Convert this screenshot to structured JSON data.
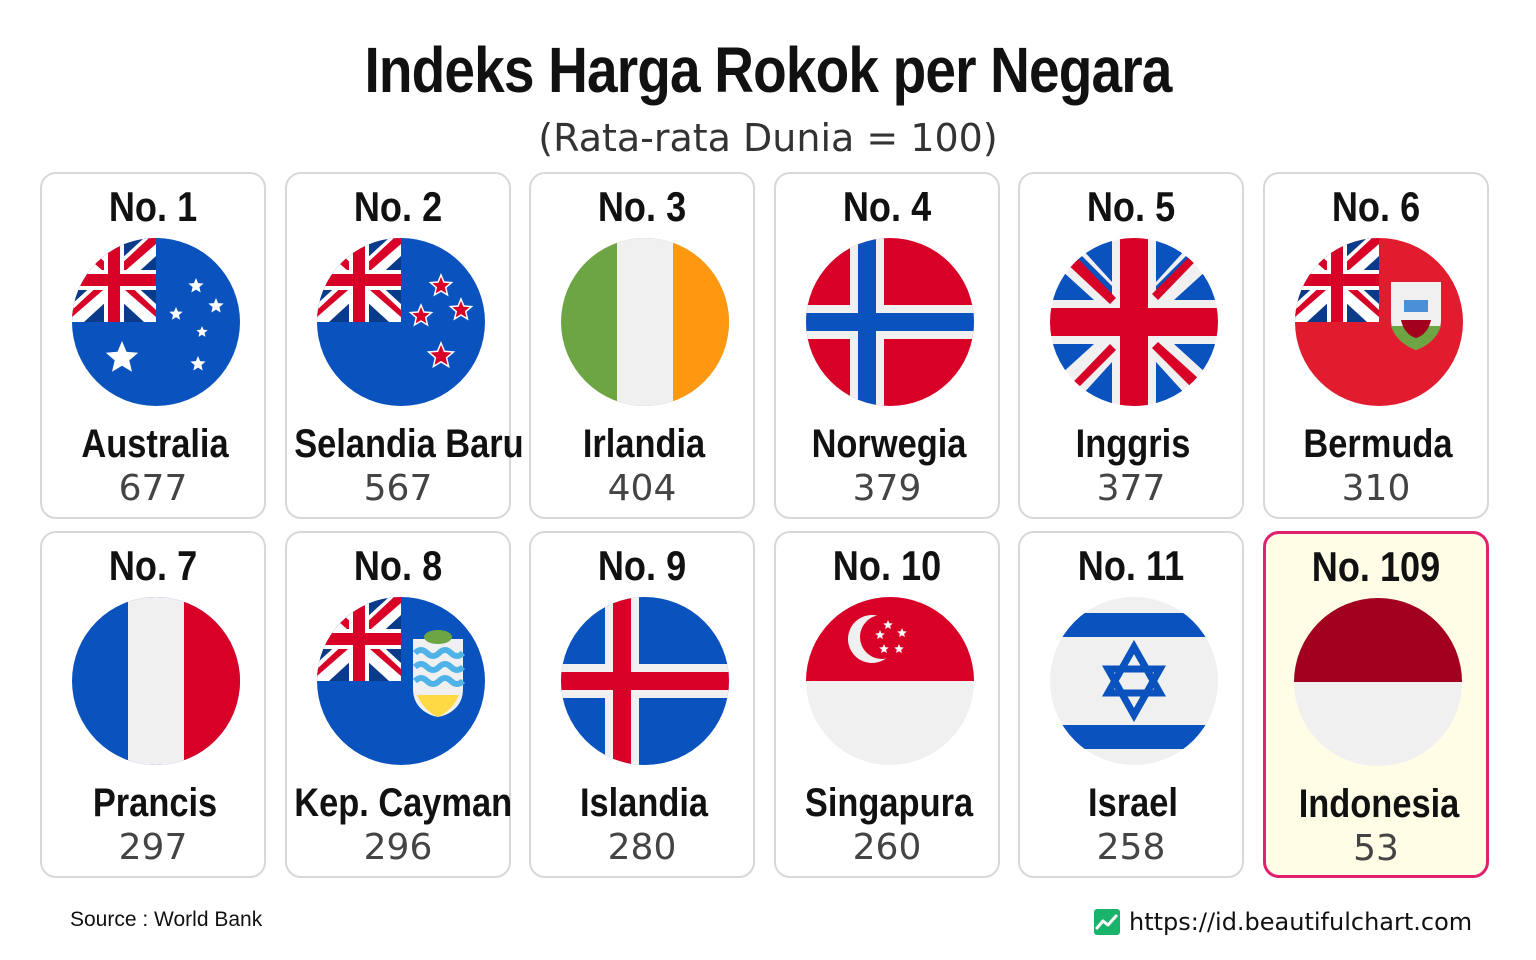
{
  "header": {
    "title": "Indeks Harga Rokok per Negara",
    "subtitle": "(Rata-rata Dunia = 100)"
  },
  "footer": {
    "source": "Source : World Bank",
    "website": "https://id.beautifulchart.com"
  },
  "colors": {
    "highlight_border": "#e0216e",
    "highlight_bg": "#fffde6",
    "card_border": "#d8d8d8"
  },
  "chart_data": {
    "type": "table",
    "title": "Indeks Harga Rokok per Negara",
    "subtitle": "(Rata-rata Dunia = 100)",
    "columns": [
      "rank",
      "country",
      "value"
    ],
    "rows": [
      {
        "rank": "No. 1",
        "country": "Australia",
        "value": 677,
        "flag": "australia-flag"
      },
      {
        "rank": "No. 2",
        "country": "Selandia Baru",
        "value": 567,
        "flag": "new-zealand-flag"
      },
      {
        "rank": "No. 3",
        "country": "Irlandia",
        "value": 404,
        "flag": "ireland-flag"
      },
      {
        "rank": "No. 4",
        "country": "Norwegia",
        "value": 379,
        "flag": "norway-flag"
      },
      {
        "rank": "No. 5",
        "country": "Inggris",
        "value": 377,
        "flag": "uk-flag"
      },
      {
        "rank": "No. 6",
        "country": "Bermuda",
        "value": 310,
        "flag": "bermuda-flag"
      },
      {
        "rank": "No. 7",
        "country": "Prancis",
        "value": 297,
        "flag": "france-flag"
      },
      {
        "rank": "No. 8",
        "country": "Kep. Cayman",
        "value": 296,
        "flag": "cayman-flag"
      },
      {
        "rank": "No. 9",
        "country": "Islandia",
        "value": 280,
        "flag": "iceland-flag"
      },
      {
        "rank": "No. 10",
        "country": "Singapura",
        "value": 260,
        "flag": "singapore-flag"
      },
      {
        "rank": "No. 11",
        "country": "Israel",
        "value": 258,
        "flag": "israel-flag"
      },
      {
        "rank": "No. 109",
        "country": "Indonesia",
        "value": 53,
        "flag": "indonesia-flag",
        "highlighted": true
      }
    ]
  }
}
